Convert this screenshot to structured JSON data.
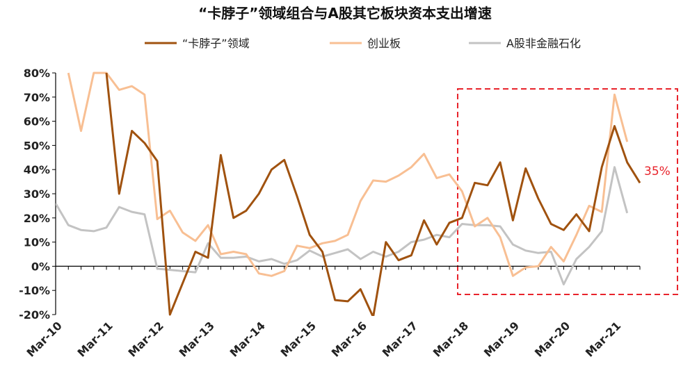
{
  "chart_data": {
    "type": "line",
    "title": "“卡脖子”领域组合与A股其它板块资本支出增速",
    "ylim": [
      -20,
      80
    ],
    "yticks": [
      "80%",
      "70%",
      "60%",
      "50%",
      "40%",
      "30%",
      "20%",
      "10%",
      "0%",
      "-10%",
      "-20%"
    ],
    "xtick_labels": [
      "Mar-10",
      "Mar-11",
      "Mar-12",
      "Mar-13",
      "Mar-14",
      "Mar-15",
      "Mar-16",
      "Mar-17",
      "Mar-18",
      "Mar-19",
      "Mar-20",
      "Mar-21"
    ],
    "grid": false,
    "legend_position": "top",
    "series": [
      {
        "name": "“卡脖子”领域",
        "color": "#a0520f",
        "values": [
          null,
          null,
          null,
          null,
          80,
          30,
          56,
          51,
          43.5,
          -20,
          -7,
          6,
          3.5,
          46,
          20,
          23,
          30,
          40,
          44,
          29,
          13,
          6,
          -14,
          -14.5,
          -9.5,
          -21,
          10,
          2.5,
          4.5,
          19,
          9,
          18,
          20,
          34.5,
          33.5,
          43,
          19,
          40.5,
          28,
          17.5,
          15,
          21.5,
          14.5,
          41,
          58,
          43,
          34.5
        ]
      },
      {
        "name": "创业板",
        "color": "#f8bf93",
        "values": [
          null,
          80,
          56,
          80,
          80,
          73,
          74.5,
          71,
          19.5,
          23,
          14,
          10.5,
          17,
          5,
          6,
          5,
          -3,
          -4,
          -2,
          8.5,
          7.5,
          9.5,
          10.5,
          13,
          27,
          35.5,
          35,
          37.5,
          41,
          46.5,
          36.5,
          38,
          31,
          16.5,
          20,
          12,
          -4,
          -0.5,
          0,
          8,
          2,
          13,
          25,
          22.5,
          71,
          51.5
        ]
      },
      {
        "name": "A股非金融石化",
        "color": "#c3c3c3",
        "values": [
          26,
          17,
          15,
          14.5,
          16,
          24.5,
          22.5,
          21.5,
          -1,
          -1.5,
          -2,
          -2.5,
          9.5,
          3.5,
          3.5,
          4,
          2,
          3,
          1,
          2.5,
          6.5,
          4,
          5.5,
          7,
          3,
          6,
          4,
          6,
          10,
          11,
          13,
          12,
          17.5,
          17,
          17,
          16.5,
          9,
          6.5,
          5.5,
          6,
          -7.5,
          3,
          8,
          14.5,
          41,
          22
        ]
      }
    ],
    "annotations": [
      {
        "text": "35%",
        "color": "#e8232b"
      }
    ]
  }
}
